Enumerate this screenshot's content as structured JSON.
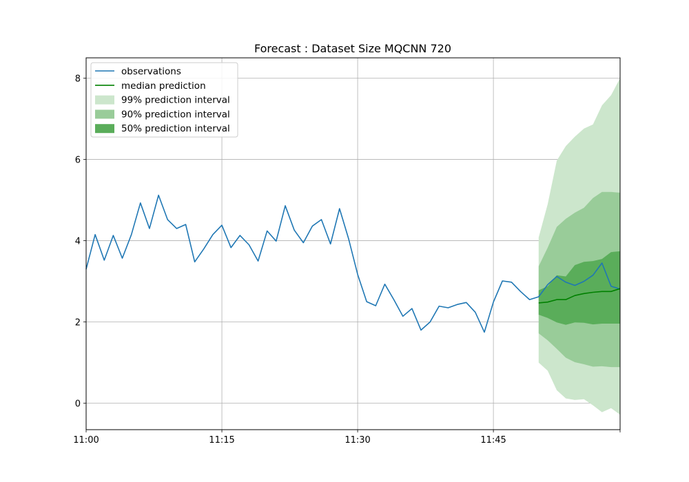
{
  "chart_data": {
    "type": "line",
    "title": "Forecast : Dataset Size MQCNN 720",
    "xlabel": "",
    "ylabel": "",
    "x_unit": "minutes past 11:00",
    "xlim": [
      0,
      59
    ],
    "ylim": [
      -0.65,
      8.5
    ],
    "x_ticks": [
      {
        "value": 0,
        "label": "11:00"
      },
      {
        "value": 15,
        "label": "11:15"
      },
      {
        "value": 30,
        "label": "11:30"
      },
      {
        "value": 45,
        "label": "11:45"
      }
    ],
    "y_ticks": [
      {
        "value": 0,
        "label": "0"
      },
      {
        "value": 2,
        "label": "2"
      },
      {
        "value": 4,
        "label": "4"
      },
      {
        "value": 6,
        "label": "6"
      },
      {
        "value": 8,
        "label": "8"
      }
    ],
    "grid": true,
    "legend_position": "top-left",
    "legend": [
      {
        "label": "observations",
        "kind": "line",
        "color": "#1f77b4"
      },
      {
        "label": "median prediction",
        "kind": "line",
        "color": "#008000"
      },
      {
        "label": "99% prediction interval",
        "kind": "patch",
        "color": "#cce6cc"
      },
      {
        "label": "90% prediction interval",
        "kind": "patch",
        "color": "#99cc99"
      },
      {
        "label": "50% prediction interval",
        "kind": "patch",
        "color": "#5aad5a"
      }
    ],
    "observations": {
      "name": "observations",
      "color": "#1f77b4",
      "x": [
        0,
        1,
        2,
        3,
        4,
        5,
        6,
        7,
        8,
        9,
        10,
        11,
        12,
        13,
        14,
        15,
        16,
        17,
        18,
        19,
        20,
        21,
        22,
        23,
        24,
        25,
        26,
        27,
        28,
        29,
        30,
        31,
        32,
        33,
        34,
        35,
        36,
        37,
        38,
        39,
        40,
        41,
        42,
        43,
        44,
        45,
        46,
        47,
        48,
        49,
        50,
        51,
        52,
        53,
        54,
        55,
        56,
        57,
        58,
        59
      ],
      "y": [
        3.3,
        4.15,
        3.52,
        4.13,
        3.57,
        4.15,
        4.93,
        4.3,
        5.12,
        4.52,
        4.3,
        4.4,
        3.48,
        3.8,
        4.15,
        4.38,
        3.83,
        4.13,
        3.9,
        3.5,
        4.24,
        3.99,
        4.86,
        4.26,
        3.95,
        4.36,
        4.52,
        3.92,
        4.79,
        4.05,
        3.17,
        2.5,
        2.4,
        2.93,
        2.55,
        2.14,
        2.33,
        1.8,
        2.0,
        2.39,
        2.35,
        2.43,
        2.48,
        2.24,
        1.75,
        2.49,
        3.01,
        2.98,
        2.75,
        2.55,
        2.62,
        2.92,
        3.12,
        2.98,
        2.9,
        3.0,
        3.15,
        3.45,
        2.88,
        2.81
      ]
    },
    "forecast": {
      "x": [
        50,
        51,
        52,
        53,
        54,
        55,
        56,
        57,
        58,
        59
      ],
      "median": [
        2.47,
        2.49,
        2.55,
        2.55,
        2.65,
        2.7,
        2.73,
        2.75,
        2.75,
        2.82
      ],
      "p50": {
        "lower": [
          2.18,
          2.1,
          1.99,
          1.93,
          1.99,
          1.98,
          1.94,
          1.96,
          1.96,
          1.96
        ],
        "upper": [
          2.78,
          2.88,
          3.15,
          3.12,
          3.4,
          3.48,
          3.5,
          3.55,
          3.72,
          3.74
        ],
        "color": "#5aad5a"
      },
      "p90": {
        "lower": [
          1.72,
          1.55,
          1.34,
          1.12,
          1.01,
          0.96,
          0.9,
          0.91,
          0.89,
          0.89
        ],
        "upper": [
          3.37,
          3.83,
          4.34,
          4.54,
          4.69,
          4.81,
          5.05,
          5.2,
          5.2,
          5.18
        ],
        "color": "#99cc99"
      },
      "p99": {
        "lower": [
          1.0,
          0.8,
          0.32,
          0.12,
          0.08,
          0.1,
          -0.05,
          -0.22,
          -0.12,
          -0.28
        ],
        "upper": [
          4.08,
          4.9,
          5.97,
          6.33,
          6.56,
          6.76,
          6.86,
          7.33,
          7.58,
          8.0
        ],
        "color": "#cce6cc"
      },
      "median_color": "#008000"
    }
  }
}
